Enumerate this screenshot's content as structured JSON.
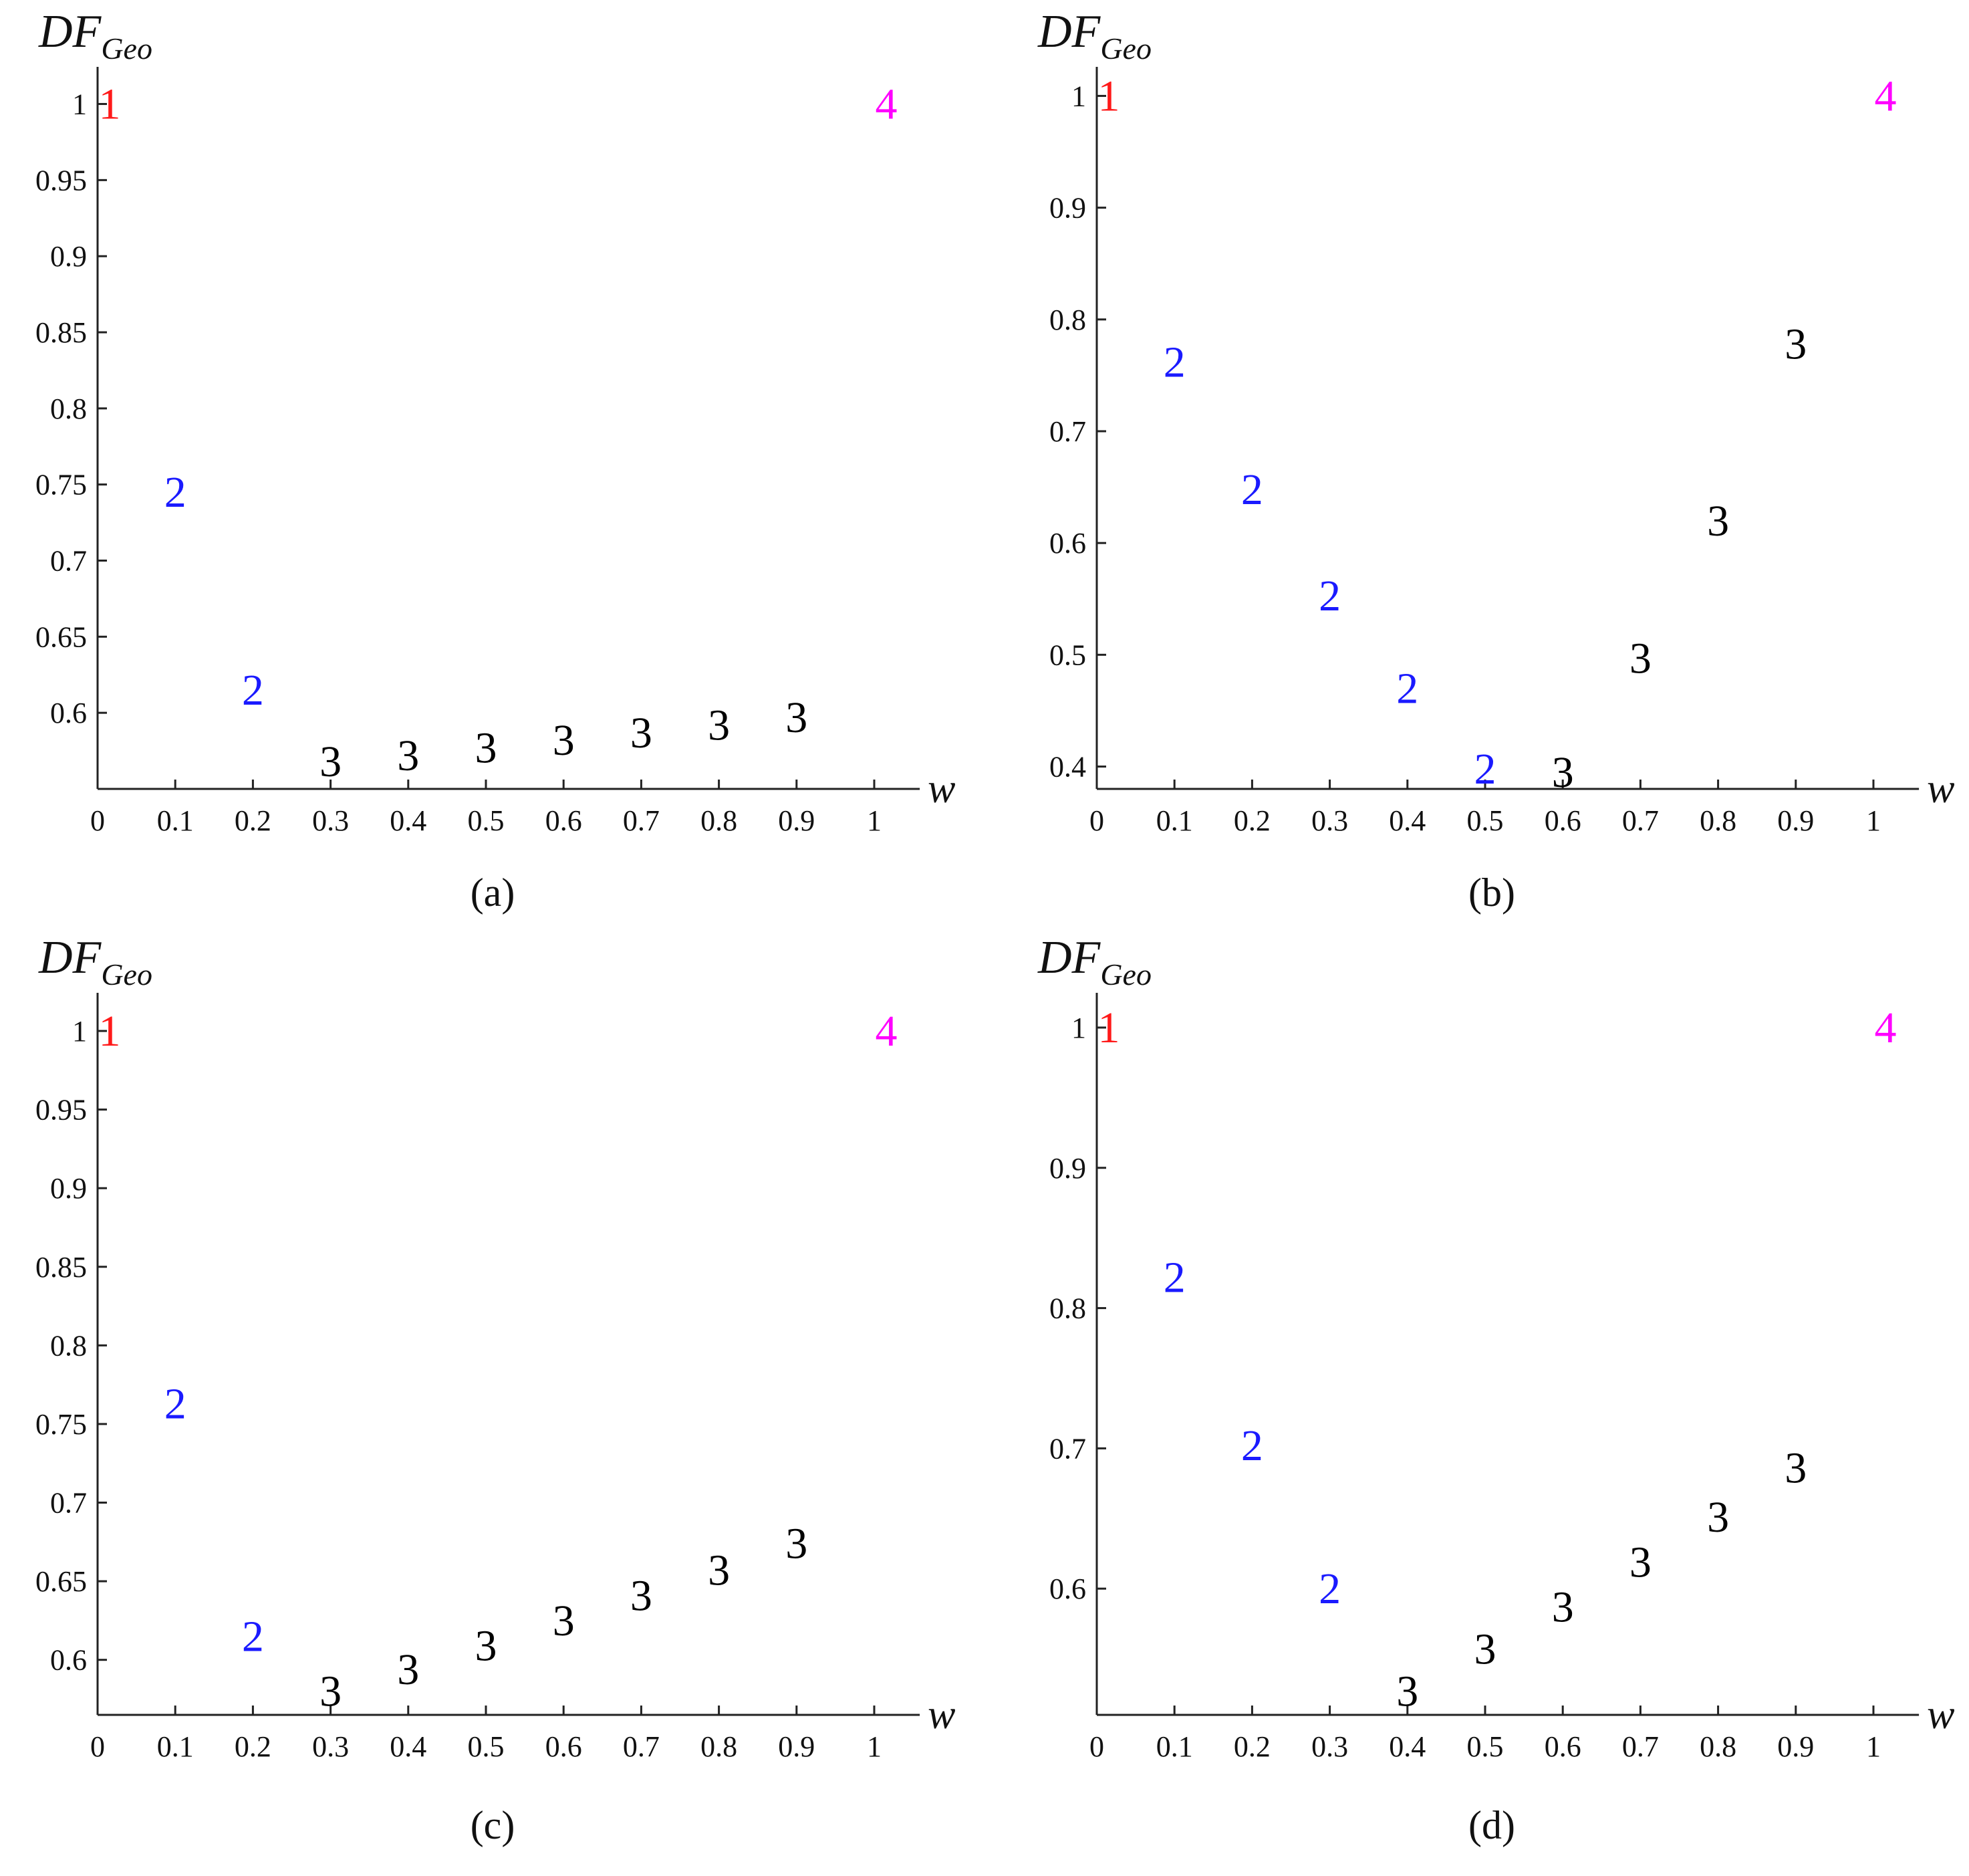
{
  "figure": {
    "category_colors": {
      "1": "#ff1a1a",
      "2": "#1a1aff",
      "3": "#000000",
      "4": "#ff00ff"
    },
    "marker_shape": "text glyph of category number"
  },
  "chart_data": [
    {
      "type": "scatter",
      "caption": "(a)",
      "xlabel": "w",
      "ylabel_main": "DF",
      "ylabel_sub": "Geo",
      "xlim": [
        0,
        1.05
      ],
      "ylim": [
        0.55,
        1.02
      ],
      "xticks": [
        0,
        0.1,
        0.2,
        0.3,
        0.4,
        0.5,
        0.6,
        0.7,
        0.8,
        0.9,
        1
      ],
      "xtick_labels": [
        "0",
        "0.1",
        "0.2",
        "0.3",
        "0.4",
        "0.5",
        "0.6",
        "0.7",
        "0.8",
        "0.9",
        "1"
      ],
      "yticks": [
        0.6,
        0.65,
        0.7,
        0.75,
        0.8,
        0.85,
        0.9,
        0.95,
        1
      ],
      "ytick_labels": [
        "0.6",
        "0.65",
        "0.7",
        "0.75",
        "0.8",
        "0.85",
        "0.9",
        "0.95",
        "1"
      ],
      "grid": false,
      "points": [
        {
          "x": 0.0,
          "y": 1.0,
          "label": "1"
        },
        {
          "x": 0.1,
          "y": 0.745,
          "label": "2"
        },
        {
          "x": 0.2,
          "y": 0.615,
          "label": "2"
        },
        {
          "x": 0.3,
          "y": 0.568,
          "label": "3"
        },
        {
          "x": 0.4,
          "y": 0.572,
          "label": "3"
        },
        {
          "x": 0.5,
          "y": 0.577,
          "label": "3"
        },
        {
          "x": 0.6,
          "y": 0.582,
          "label": "3"
        },
        {
          "x": 0.7,
          "y": 0.587,
          "label": "3"
        },
        {
          "x": 0.8,
          "y": 0.592,
          "label": "3"
        },
        {
          "x": 0.9,
          "y": 0.597,
          "label": "3"
        },
        {
          "x": 1.0,
          "y": 1.0,
          "label": "4"
        }
      ]
    },
    {
      "type": "scatter",
      "caption": "(b)",
      "xlabel": "w",
      "ylabel_main": "DF",
      "ylabel_sub": "Geo",
      "xlim": [
        0,
        1.05
      ],
      "ylim": [
        0.38,
        1.02
      ],
      "xticks": [
        0,
        0.1,
        0.2,
        0.3,
        0.4,
        0.5,
        0.6,
        0.7,
        0.8,
        0.9,
        1
      ],
      "xtick_labels": [
        "0",
        "0.1",
        "0.2",
        "0.3",
        "0.4",
        "0.5",
        "0.6",
        "0.7",
        "0.8",
        "0.9",
        "1"
      ],
      "yticks": [
        0.4,
        0.5,
        0.6,
        0.7,
        0.8,
        0.9,
        1
      ],
      "ytick_labels": [
        "0.4",
        "0.5",
        "0.6",
        "0.7",
        "0.8",
        "0.9",
        "1"
      ],
      "grid": false,
      "points": [
        {
          "x": 0.0,
          "y": 1.0,
          "label": "1"
        },
        {
          "x": 0.1,
          "y": 0.762,
          "label": "2"
        },
        {
          "x": 0.2,
          "y": 0.648,
          "label": "2"
        },
        {
          "x": 0.3,
          "y": 0.553,
          "label": "2"
        },
        {
          "x": 0.4,
          "y": 0.47,
          "label": "2"
        },
        {
          "x": 0.5,
          "y": 0.398,
          "label": "2"
        },
        {
          "x": 0.6,
          "y": 0.395,
          "label": "3"
        },
        {
          "x": 0.7,
          "y": 0.497,
          "label": "3"
        },
        {
          "x": 0.8,
          "y": 0.62,
          "label": "3"
        },
        {
          "x": 0.9,
          "y": 0.778,
          "label": "3"
        },
        {
          "x": 1.0,
          "y": 1.0,
          "label": "4"
        }
      ]
    },
    {
      "type": "scatter",
      "caption": "(c)",
      "xlabel": "w",
      "ylabel_main": "DF",
      "ylabel_sub": "Geo",
      "xlim": [
        0,
        1.05
      ],
      "ylim": [
        0.565,
        1.02
      ],
      "xticks": [
        0,
        0.1,
        0.2,
        0.3,
        0.4,
        0.5,
        0.6,
        0.7,
        0.8,
        0.9,
        1
      ],
      "xtick_labels": [
        "0",
        "0.1",
        "0.2",
        "0.3",
        "0.4",
        "0.5",
        "0.6",
        "0.7",
        "0.8",
        "0.9",
        "1"
      ],
      "yticks": [
        0.6,
        0.65,
        0.7,
        0.75,
        0.8,
        0.85,
        0.9,
        0.95,
        1
      ],
      "ytick_labels": [
        "0.6",
        "0.65",
        "0.7",
        "0.75",
        "0.8",
        "0.85",
        "0.9",
        "0.95",
        "1"
      ],
      "grid": false,
      "points": [
        {
          "x": 0.0,
          "y": 1.0,
          "label": "1"
        },
        {
          "x": 0.1,
          "y": 0.763,
          "label": "2"
        },
        {
          "x": 0.2,
          "y": 0.615,
          "label": "2"
        },
        {
          "x": 0.3,
          "y": 0.58,
          "label": "3"
        },
        {
          "x": 0.4,
          "y": 0.594,
          "label": "3"
        },
        {
          "x": 0.5,
          "y": 0.609,
          "label": "3"
        },
        {
          "x": 0.6,
          "y": 0.625,
          "label": "3"
        },
        {
          "x": 0.7,
          "y": 0.641,
          "label": "3"
        },
        {
          "x": 0.8,
          "y": 0.657,
          "label": "3"
        },
        {
          "x": 0.9,
          "y": 0.674,
          "label": "3"
        },
        {
          "x": 1.0,
          "y": 1.0,
          "label": "4"
        }
      ]
    },
    {
      "type": "scatter",
      "caption": "(d)",
      "xlabel": "w",
      "ylabel_main": "DF",
      "ylabel_sub": "Geo",
      "xlim": [
        0,
        1.05
      ],
      "ylim": [
        0.51,
        1.02
      ],
      "xticks": [
        0,
        0.1,
        0.2,
        0.3,
        0.4,
        0.5,
        0.6,
        0.7,
        0.8,
        0.9,
        1
      ],
      "xtick_labels": [
        "0",
        "0.1",
        "0.2",
        "0.3",
        "0.4",
        "0.5",
        "0.6",
        "0.7",
        "0.8",
        "0.9",
        "1"
      ],
      "yticks": [
        0.6,
        0.7,
        0.8,
        0.9,
        1
      ],
      "ytick_labels": [
        "0.6",
        "0.7",
        "0.8",
        "0.9",
        "1"
      ],
      "grid": false,
      "points": [
        {
          "x": 0.0,
          "y": 1.0,
          "label": "1"
        },
        {
          "x": 0.1,
          "y": 0.822,
          "label": "2"
        },
        {
          "x": 0.2,
          "y": 0.702,
          "label": "2"
        },
        {
          "x": 0.3,
          "y": 0.6,
          "label": "2"
        },
        {
          "x": 0.4,
          "y": 0.527,
          "label": "3"
        },
        {
          "x": 0.5,
          "y": 0.557,
          "label": "3"
        },
        {
          "x": 0.6,
          "y": 0.587,
          "label": "3"
        },
        {
          "x": 0.7,
          "y": 0.619,
          "label": "3"
        },
        {
          "x": 0.8,
          "y": 0.651,
          "label": "3"
        },
        {
          "x": 0.9,
          "y": 0.686,
          "label": "3"
        },
        {
          "x": 1.0,
          "y": 1.0,
          "label": "4"
        }
      ]
    }
  ]
}
